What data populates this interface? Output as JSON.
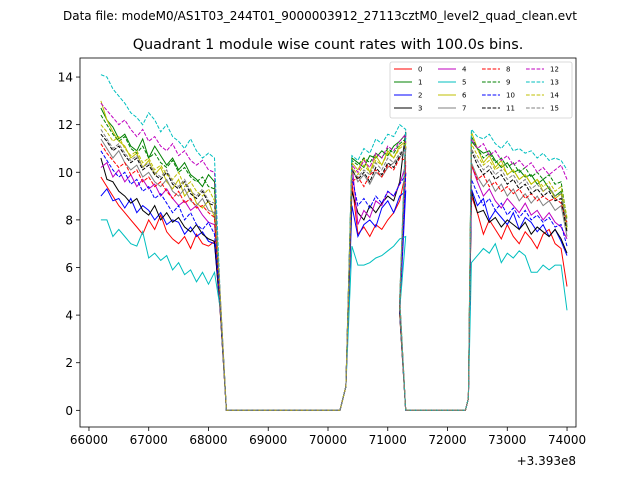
{
  "supertitle": "Data file: modeM0/AS1T03_244T01_9000003912_27113cztM0_level2_quad_clean.evt",
  "chart_data": {
    "type": "line",
    "title": "Quadrant 1 module wise count rates with 100.0s bins.",
    "xlabel": "",
    "ylabel": "",
    "x_offset_label": "+3.393e8",
    "xlim": [
      65850,
      74150
    ],
    "ylim": [
      -0.7,
      14.8
    ],
    "x_ticks": [
      66000,
      67000,
      68000,
      69000,
      70000,
      71000,
      72000,
      73000,
      74000
    ],
    "x_tick_labels": [
      "66000",
      "67000",
      "68000",
      "69000",
      "70000",
      "71000",
      "72000",
      "73000",
      "74000"
    ],
    "y_ticks": [
      0,
      2,
      4,
      6,
      8,
      10,
      12,
      14
    ],
    "y_tick_labels": [
      "0",
      "2",
      "4",
      "6",
      "8",
      "10",
      "12",
      "14"
    ],
    "grid": false,
    "legend_position": "top-right",
    "series": [
      {
        "name": "0",
        "color": "#ff0000",
        "dash": "solid",
        "seg1": [
          9.8,
          9.4,
          9.0,
          8.6,
          8.3,
          8.0,
          7.7,
          7.4,
          8.0,
          7.6,
          8.2,
          7.5,
          7.2,
          7.0,
          7.3,
          6.8,
          7.4,
          7.0,
          6.9,
          7.1
        ],
        "seg2": [
          9.6,
          7.4,
          7.7,
          7.3,
          7.8,
          7.6,
          8.0,
          8.3,
          8.8,
          10.0
        ],
        "seg3": [
          9.0,
          8.3,
          7.4,
          8.0,
          7.6,
          7.2,
          7.8,
          7.3,
          7.0,
          7.5,
          7.2,
          6.8,
          7.4,
          7.6,
          7.0,
          6.8,
          5.2
        ]
      },
      {
        "name": "1",
        "color": "#008000",
        "dash": "solid",
        "seg1": [
          12.7,
          12.2,
          11.9,
          11.4,
          11.6,
          11.1,
          10.9,
          11.4,
          10.6,
          11.1,
          10.7,
          10.3,
          10.6,
          10.1,
          10.4,
          9.9,
          9.7,
          9.4,
          9.9,
          9.6
        ],
        "seg2": [
          10.6,
          10.4,
          10.2,
          10.7,
          10.6,
          10.9,
          10.7,
          11.1,
          11.3,
          11.6
        ],
        "seg3": [
          11.3,
          11.0,
          10.8,
          10.9,
          10.5,
          10.2,
          10.4,
          10.0,
          10.1,
          9.8,
          9.9,
          9.5,
          9.7,
          9.3,
          9.0,
          9.2,
          7.7
        ]
      },
      {
        "name": "2",
        "color": "#0000ff",
        "dash": "solid",
        "seg1": [
          9.0,
          9.3,
          8.8,
          8.9,
          8.5,
          8.9,
          8.3,
          8.6,
          8.4,
          8.0,
          8.3,
          7.8,
          8.0,
          7.9,
          7.4,
          7.7,
          7.3,
          7.5,
          7.1,
          7.0
        ],
        "seg2": [
          8.6,
          7.3,
          7.8,
          8.0,
          7.7,
          8.5,
          8.8,
          8.3,
          9.0,
          9.2
        ],
        "seg3": [
          9.3,
          8.6,
          8.9,
          8.0,
          8.4,
          8.1,
          7.8,
          8.3,
          7.6,
          8.1,
          7.9,
          7.5,
          7.8,
          7.3,
          7.6,
          7.1,
          6.5
        ]
      },
      {
        "name": "3",
        "color": "#000000",
        "dash": "solid",
        "seg1": [
          10.6,
          9.7,
          9.6,
          9.2,
          9.0,
          8.7,
          8.9,
          8.4,
          8.2,
          8.6,
          8.0,
          8.3,
          7.9,
          8.1,
          7.7,
          7.5,
          7.8,
          7.4,
          7.2,
          7.1
        ],
        "seg2": [
          9.2,
          8.3,
          8.0,
          8.6,
          8.3,
          8.7,
          9.0,
          8.8,
          9.6,
          11.7
        ],
        "seg3": [
          9.2,
          8.3,
          8.4,
          7.9,
          8.1,
          7.7,
          8.0,
          7.8,
          7.6,
          7.9,
          7.4,
          7.7,
          7.5,
          7.3,
          7.6,
          7.2,
          6.6
        ]
      },
      {
        "name": "4",
        "color": "#bf00bf",
        "dash": "solid",
        "seg1": [
          10.2,
          10.4,
          9.8,
          10.1,
          9.6,
          9.9,
          9.4,
          9.7,
          9.3,
          9.5,
          9.0,
          9.3,
          8.9,
          8.6,
          8.8,
          8.4,
          8.6,
          8.2,
          7.9,
          7.8
        ],
        "seg2": [
          10.4,
          7.8,
          8.4,
          8.1,
          8.8,
          8.6,
          9.2,
          9.0,
          9.5,
          10.3
        ],
        "seg3": [
          10.3,
          9.6,
          9.0,
          9.3,
          8.8,
          8.5,
          8.9,
          8.6,
          8.3,
          8.7,
          8.2,
          8.4,
          8.0,
          8.3,
          7.9,
          7.7,
          7.2
        ]
      },
      {
        "name": "5",
        "color": "#00bfbf",
        "dash": "solid",
        "seg1": [
          8.0,
          8.0,
          7.3,
          7.6,
          7.3,
          7.0,
          6.9,
          7.5,
          6.4,
          6.6,
          6.3,
          6.5,
          5.9,
          6.2,
          5.7,
          5.9,
          5.4,
          5.8,
          5.3,
          5.8
        ],
        "seg2": [
          6.9,
          6.1,
          6.1,
          6.2,
          6.4,
          6.5,
          6.7,
          6.9,
          7.2,
          7.3
        ],
        "seg3": [
          6.2,
          6.5,
          6.8,
          6.6,
          7.0,
          6.2,
          6.6,
          6.4,
          6.7,
          6.5,
          5.8,
          5.8,
          6.1,
          5.9,
          6.1,
          6.1,
          4.2
        ]
      },
      {
        "name": "6",
        "color": "#bfbf00",
        "dash": "solid",
        "seg1": [
          13.0,
          12.2,
          11.7,
          11.3,
          11.1,
          10.6,
          10.8,
          10.2,
          10.5,
          9.9,
          10.2,
          9.6,
          9.3,
          9.7,
          9.0,
          9.3,
          8.7,
          8.5,
          8.8,
          8.1
        ],
        "seg2": [
          10.4,
          10.1,
          10.6,
          10.0,
          10.7,
          10.3,
          10.9,
          10.6,
          11.1,
          11.3
        ],
        "seg3": [
          11.7,
          11.0,
          10.4,
          10.7,
          10.2,
          10.5,
          9.9,
          10.1,
          9.7,
          9.9,
          9.5,
          9.7,
          9.2,
          9.4,
          8.9,
          9.1,
          7.6
        ]
      },
      {
        "name": "7",
        "color": "#808080",
        "dash": "solid",
        "seg1": [
          11.4,
          11.0,
          10.6,
          10.9,
          10.4,
          10.1,
          10.3,
          9.8,
          10.0,
          9.6,
          9.4,
          9.7,
          9.2,
          9.0,
          9.3,
          8.8,
          8.6,
          8.9,
          8.4,
          8.3
        ],
        "seg2": [
          10.2,
          9.6,
          9.9,
          9.5,
          10.0,
          9.8,
          10.2,
          10.4,
          10.6,
          11.0
        ],
        "seg3": [
          10.4,
          9.8,
          9.4,
          9.7,
          9.2,
          9.5,
          9.0,
          9.3,
          8.8,
          9.1,
          8.7,
          9.0,
          8.6,
          8.8,
          8.4,
          8.6,
          7.3
        ]
      },
      {
        "name": "8",
        "color": "#ff0000",
        "dash": "dashed",
        "seg1": [
          11.2,
          10.8,
          10.5,
          10.2,
          10.4,
          9.9,
          10.1,
          9.6,
          9.8,
          9.4,
          9.6,
          9.2,
          8.9,
          9.2,
          8.7,
          8.9,
          8.5,
          8.6,
          8.3,
          8.1
        ],
        "seg2": [
          9.6,
          9.8,
          9.4,
          9.9,
          10.1,
          9.8,
          10.3,
          10.1,
          10.6,
          10.5
        ],
        "seg3": [
          10.3,
          9.7,
          9.9,
          9.4,
          9.6,
          9.2,
          9.4,
          9.1,
          9.3,
          8.9,
          9.1,
          8.8,
          9.0,
          8.8,
          8.9,
          8.7,
          7.9
        ]
      },
      {
        "name": "9",
        "color": "#008000",
        "dash": "dashed",
        "seg1": [
          12.4,
          12.0,
          11.6,
          11.3,
          11.5,
          11.0,
          10.8,
          11.1,
          10.6,
          10.8,
          10.4,
          10.2,
          10.5,
          10.0,
          10.2,
          9.8,
          9.6,
          9.8,
          9.4,
          9.3
        ],
        "seg2": [
          10.5,
          10.3,
          10.6,
          10.4,
          10.8,
          10.6,
          11.0,
          10.8,
          11.2,
          11.4
        ],
        "seg3": [
          11.5,
          11.0,
          10.6,
          10.8,
          10.4,
          10.6,
          10.2,
          10.4,
          10.0,
          10.2,
          9.8,
          10.0,
          9.7,
          9.9,
          9.5,
          9.6,
          8.0
        ]
      },
      {
        "name": "10",
        "color": "#0000ff",
        "dash": "dashed",
        "seg1": [
          10.9,
          10.5,
          10.1,
          9.8,
          10.0,
          9.5,
          9.7,
          9.2,
          9.4,
          8.9,
          9.1,
          8.7,
          8.3,
          8.6,
          8.0,
          8.3,
          7.8,
          7.6,
          7.9,
          7.4
        ],
        "seg2": [
          9.8,
          8.6,
          8.9,
          8.5,
          9.0,
          8.7,
          9.2,
          9.0,
          9.5,
          9.9
        ],
        "seg3": [
          9.7,
          9.1,
          8.6,
          8.9,
          8.4,
          8.7,
          8.2,
          8.5,
          8.1,
          8.4,
          8.0,
          8.2,
          7.9,
          8.1,
          7.7,
          7.8,
          6.9
        ]
      },
      {
        "name": "11",
        "color": "#000000",
        "dash": "dashed",
        "seg1": [
          11.6,
          11.3,
          10.9,
          11.1,
          10.7,
          10.4,
          10.6,
          10.1,
          10.3,
          9.9,
          9.7,
          10.0,
          9.5,
          9.3,
          9.6,
          9.1,
          8.9,
          9.2,
          8.7,
          8.6
        ],
        "seg2": [
          10.1,
          9.7,
          10.0,
          9.6,
          10.2,
          9.9,
          10.4,
          10.2,
          10.7,
          11.1
        ],
        "seg3": [
          10.9,
          10.3,
          9.9,
          10.1,
          9.7,
          9.9,
          9.5,
          9.7,
          9.3,
          9.5,
          9.1,
          9.3,
          9.0,
          9.2,
          8.8,
          8.9,
          7.5
        ]
      },
      {
        "name": "12",
        "color": "#bf00bf",
        "dash": "dashed",
        "seg1": [
          12.9,
          12.6,
          12.3,
          12.0,
          12.2,
          11.8,
          11.5,
          11.8,
          11.3,
          11.5,
          11.1,
          10.9,
          11.2,
          10.7,
          10.9,
          10.5,
          10.3,
          10.5,
          10.1,
          10.0
        ],
        "seg2": [
          10.3,
          10.0,
          10.5,
          10.2,
          10.8,
          10.6,
          11.1,
          10.9,
          11.3,
          11.6
        ],
        "seg3": [
          11.4,
          11.0,
          11.2,
          10.7,
          10.9,
          10.5,
          10.7,
          10.3,
          10.5,
          10.2,
          10.4,
          10.0,
          10.2,
          9.9,
          10.1,
          10.3,
          9.7
        ]
      },
      {
        "name": "13",
        "color": "#00bfbf",
        "dash": "dashed",
        "seg1": [
          14.1,
          14.0,
          13.5,
          13.2,
          12.9,
          12.5,
          12.3,
          12.0,
          12.5,
          12.2,
          11.7,
          12.0,
          11.5,
          11.3,
          11.0,
          11.4,
          10.9,
          10.6,
          10.8,
          10.6
        ],
        "seg2": [
          10.7,
          10.5,
          11.0,
          10.8,
          11.4,
          11.2,
          11.6,
          11.5,
          12.0,
          11.8
        ],
        "seg3": [
          11.8,
          11.5,
          11.4,
          11.6,
          11.2,
          11.0,
          11.3,
          10.9,
          11.0,
          10.8,
          10.9,
          10.6,
          10.8,
          10.5,
          10.6,
          10.5,
          10.1
        ]
      },
      {
        "name": "14",
        "color": "#bfbf00",
        "dash": "dashed",
        "seg1": [
          12.0,
          11.7,
          11.3,
          11.5,
          11.0,
          10.7,
          10.9,
          10.4,
          10.6,
          10.1,
          10.3,
          9.9,
          9.7,
          10.0,
          9.4,
          9.6,
          9.2,
          9.0,
          9.3,
          8.8
        ],
        "seg2": [
          10.2,
          9.9,
          10.3,
          10.0,
          10.5,
          10.3,
          10.8,
          10.6,
          11.0,
          11.2
        ],
        "seg3": [
          11.2,
          10.7,
          10.3,
          10.5,
          10.1,
          10.3,
          9.9,
          10.1,
          9.7,
          9.9,
          9.5,
          9.7,
          9.4,
          9.6,
          9.2,
          9.4,
          8.1
        ]
      },
      {
        "name": "15",
        "color": "#808080",
        "dash": "dashed",
        "seg1": [
          11.8,
          11.4,
          11.0,
          11.2,
          10.8,
          10.5,
          10.7,
          10.2,
          10.4,
          10.0,
          9.8,
          10.1,
          9.6,
          9.4,
          9.7,
          9.2,
          9.0,
          9.3,
          8.8,
          8.7
        ],
        "seg2": [
          10.0,
          9.8,
          10.1,
          9.9,
          10.4,
          10.1,
          10.6,
          10.4,
          10.8,
          11.0
        ],
        "seg3": [
          11.0,
          10.5,
          10.1,
          10.3,
          9.9,
          10.1,
          9.7,
          9.9,
          9.5,
          9.7,
          9.3,
          9.5,
          9.2,
          9.4,
          9.0,
          9.1,
          7.8
        ]
      }
    ],
    "segment_x": {
      "seg1_start": 66200,
      "seg1_end": 68100,
      "seg2_start": 70400,
      "seg2_end": 71300,
      "seg3_start": 72400,
      "seg3_end": 74000
    },
    "zero_x": [
      68300,
      68400,
      68500,
      68600,
      68700,
      68800,
      68900,
      69000,
      69100,
      69200,
      69300,
      69400,
      69500,
      69600,
      69700,
      69800,
      69900,
      70000,
      70100,
      70200,
      71300,
      71400,
      71500,
      71600,
      71700,
      71800,
      71900,
      72000,
      72100,
      72200,
      72300
    ],
    "ramp_points": [
      [
        68200,
        4.0
      ],
      [
        70300,
        1.0
      ],
      [
        71200,
        4.0
      ],
      [
        72350,
        0.5
      ]
    ]
  }
}
